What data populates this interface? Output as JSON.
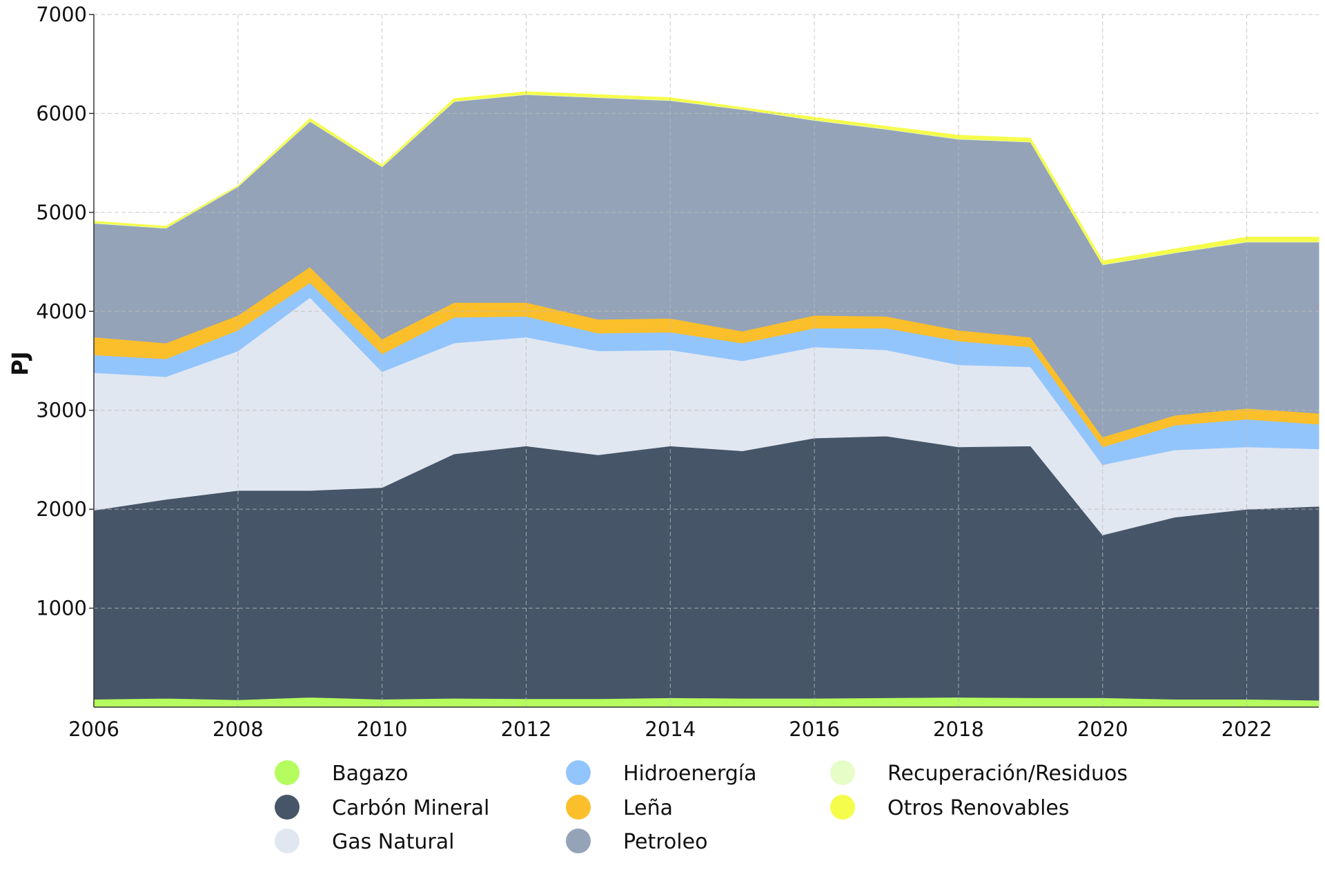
{
  "chart_data": {
    "type": "area",
    "stacked": true,
    "title": "",
    "xlabel": "",
    "ylabel": "PJ",
    "xlim": [
      2006,
      2023
    ],
    "ylim": [
      0,
      7000
    ],
    "grid": true,
    "legend_placement": "bottom",
    "x": [
      2006,
      2007,
      2008,
      2009,
      2010,
      2011,
      2012,
      2013,
      2014,
      2015,
      2016,
      2017,
      2018,
      2019,
      2020,
      2021,
      2022,
      2023
    ],
    "x_ticks": [
      "2006",
      "2008",
      "2010",
      "2012",
      "2014",
      "2016",
      "2018",
      "2020",
      "2022"
    ],
    "y_ticks": [
      "1000",
      "2000",
      "3000",
      "4000",
      "5000",
      "6000",
      "7000"
    ],
    "series": [
      {
        "name": "Bagazo",
        "color": "#b5fc5e",
        "values": [
          80,
          90,
          75,
          100,
          80,
          90,
          85,
          85,
          95,
          90,
          90,
          95,
          100,
          95,
          95,
          80,
          80,
          70
        ]
      },
      {
        "name": "Carbón Mineral",
        "color": "#465568",
        "values": [
          1910,
          2010,
          2115,
          2090,
          2140,
          2470,
          2555,
          2465,
          2545,
          2500,
          2630,
          2645,
          2530,
          2545,
          1645,
          1840,
          1920,
          1960
        ]
      },
      {
        "name": "Gas Natural",
        "color": "#e1e7f0",
        "values": [
          1390,
          1240,
          1410,
          1950,
          1170,
          1120,
          1100,
          1050,
          970,
          910,
          920,
          870,
          830,
          800,
          710,
          680,
          630,
          580
        ]
      },
      {
        "name": "Hidroenergía",
        "color": "#93c5fd",
        "values": [
          180,
          180,
          210,
          150,
          180,
          260,
          210,
          180,
          180,
          180,
          190,
          220,
          240,
          200,
          180,
          250,
          280,
          250
        ]
      },
      {
        "name": "Leña",
        "color": "#fbbf2b",
        "values": [
          180,
          160,
          150,
          160,
          150,
          150,
          140,
          140,
          140,
          120,
          130,
          120,
          110,
          100,
          100,
          100,
          110,
          110
        ]
      },
      {
        "name": "Petroleo",
        "color": "#94a3b8",
        "values": [
          1150,
          1160,
          1300,
          1470,
          1740,
          2030,
          2100,
          2240,
          2200,
          2240,
          1970,
          1890,
          1930,
          1970,
          1740,
          1640,
          1680,
          1730
        ]
      },
      {
        "name": "Recuperación/Residuos",
        "color": "#e6fdc8",
        "values": [
          5,
          5,
          5,
          5,
          5,
          5,
          5,
          5,
          5,
          5,
          5,
          5,
          5,
          5,
          5,
          5,
          5,
          5
        ]
      },
      {
        "name": "Otros Renovables",
        "color": "#f5fd4a",
        "values": [
          15,
          15,
          5,
          25,
          15,
          25,
          25,
          25,
          25,
          15,
          25,
          25,
          35,
          35,
          35,
          35,
          45,
          45
        ]
      }
    ]
  }
}
